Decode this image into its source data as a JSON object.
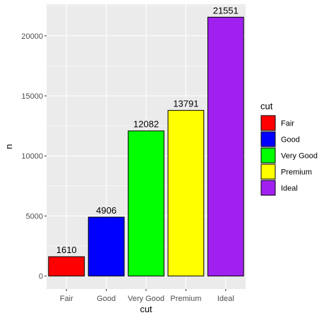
{
  "chart_data": {
    "type": "bar",
    "title": "",
    "xlabel": "cut",
    "ylabel": "n",
    "categories": [
      "Fair",
      "Good",
      "Very Good",
      "Premium",
      "Ideal"
    ],
    "values": [
      1610,
      4906,
      12082,
      13791,
      21551
    ],
    "data_labels": [
      "1610",
      "4906",
      "12082",
      "13791",
      "21551"
    ],
    "colors": [
      "#FF0000",
      "#0000FF",
      "#00FF00",
      "#FFFF00",
      "#A020F0"
    ],
    "ylim": [
      -1078,
      22629
    ],
    "yticks": [
      0,
      5000,
      10000,
      15000,
      20000
    ],
    "ytick_labels": [
      "0",
      "5000",
      "10000",
      "15000",
      "20000"
    ],
    "grid": true,
    "legend": {
      "title": "cut",
      "position": "right",
      "entries": [
        "Fair",
        "Good",
        "Very Good",
        "Premium",
        "Ideal"
      ]
    }
  }
}
